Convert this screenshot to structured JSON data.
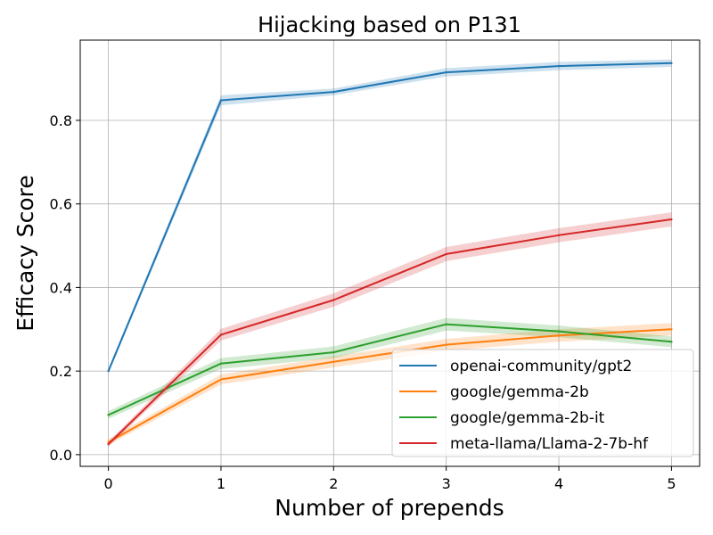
{
  "chart_data": {
    "type": "line",
    "title": "Hijacking based on P131",
    "xlabel": "Number of prepends",
    "ylabel": "Efficacy Score",
    "x": [
      0,
      1,
      2,
      3,
      4,
      5
    ],
    "xlim": [
      -0.25,
      5.25
    ],
    "ylim": [
      -0.028,
      0.992
    ],
    "x_ticks": [
      "0",
      "1",
      "2",
      "3",
      "4",
      "5"
    ],
    "y_ticks": [
      "0.0",
      "0.2",
      "0.4",
      "0.6",
      "0.8"
    ],
    "grid": true,
    "legend_position": "lower right",
    "series": [
      {
        "name": "openai-community/gpt2",
        "color": "#1f77b4",
        "values": [
          0.2,
          0.848,
          0.868,
          0.915,
          0.93,
          0.937
        ],
        "band": [
          0.006,
          0.012,
          0.008,
          0.01,
          0.01,
          0.009
        ]
      },
      {
        "name": "google/gemma-2b",
        "color": "#ff7f0e",
        "values": [
          0.03,
          0.18,
          0.222,
          0.263,
          0.285,
          0.3
        ],
        "band": [
          0.007,
          0.012,
          0.013,
          0.014,
          0.015,
          0.015
        ]
      },
      {
        "name": "google/gemma-2b-it",
        "color": "#2ca02c",
        "values": [
          0.095,
          0.218,
          0.245,
          0.312,
          0.295,
          0.27
        ],
        "band": [
          0.009,
          0.013,
          0.014,
          0.015,
          0.014,
          0.013
        ]
      },
      {
        "name": "meta-llama/Llama-2-7b-hf",
        "color": "#d62728",
        "values": [
          0.025,
          0.287,
          0.37,
          0.48,
          0.525,
          0.563
        ],
        "band": [
          0.006,
          0.014,
          0.016,
          0.017,
          0.017,
          0.017
        ]
      }
    ]
  }
}
